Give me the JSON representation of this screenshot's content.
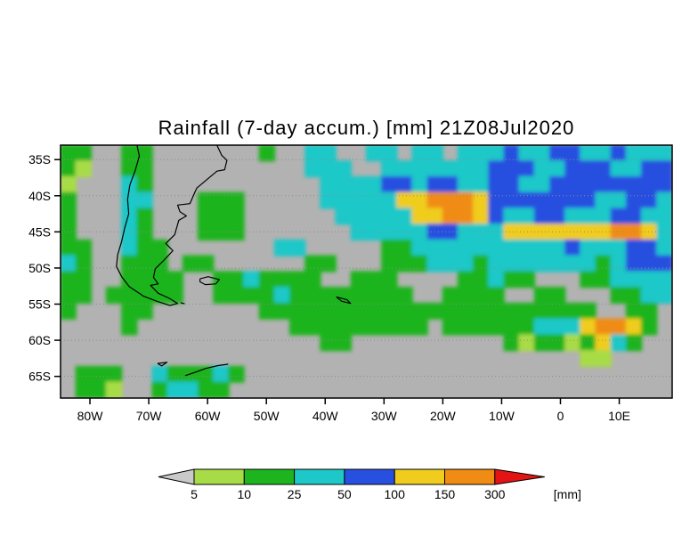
{
  "chart_data": {
    "type": "heatmap",
    "title": "Rainfall (7-day accum.) [mm] 21Z08Jul2020",
    "x_ticks": [
      "80W",
      "70W",
      "60W",
      "50W",
      "40W",
      "30W",
      "20W",
      "10W",
      "0",
      "10E"
    ],
    "y_ticks": [
      "35S",
      "40S",
      "45S",
      "50S",
      "55S",
      "60S",
      "65S"
    ],
    "lon_range_deg_east": [
      -85,
      19
    ],
    "lat_range_deg_south": [
      33,
      68
    ],
    "grid_lines": "dotted horizontal latitude lines",
    "legend_position": "bottom-center",
    "background_color": "#b2b2b2",
    "colorbar": {
      "labels": [
        "5",
        "10",
        "25",
        "50",
        "100",
        "150",
        "300"
      ],
      "unit": "[mm]",
      "colors": {
        "below": "#c9c9c9",
        "segments": [
          "#a8dc46",
          "#1eb41e",
          "#1fc8c8",
          "#2850e0",
          "#f0cc1e",
          "#f08c14"
        ],
        "above": "#e41414"
      },
      "bins_mm": [
        "<5",
        "5-10",
        "10-25",
        "25-50",
        "50-100",
        "100-150",
        "150-300",
        ">300"
      ]
    },
    "grid": {
      "cols": 40,
      "rows": 16,
      "cell_legend": {
        ".": "no rain / <5mm (gray)",
        "1": "5-10",
        "2": "10-25",
        "3": "25-50",
        "4": "50-100",
        "5": "100-150",
        "6": "150-300",
        "7": ">300"
      },
      "cells": [
        [
          "22..22....",
          "...2..33..",
          "33.33.3334",
          "3344334333"
        ],
        [
          "21..22....",
          "......333.",
          ".333333344",
          "4334443344"
        ],
        [
          "1...32....",
          ".......333",
          "3443443344",
          "3344444444"
        ],
        [
          "2...33...2",
          "22.....333",
          "3355666544",
          "4444433443"
        ],
        [
          "2...32...2",
          "22......33",
          "3335566543",
          "3443334433"
        ],
        [
          "2...32...2",
          "22.......3",
          "3333443335",
          "5555556653"
        ],
        [
          "22..322...",
          "....33....",
          ".223333333",
          "3334333443"
        ],
        [
          "32..222.22",
          "......22..",
          ".222333233",
          "3333323444"
        ],
        [
          "22..2222..",
          "2232222..2",
          "22....2232",
          "2...223333"
        ],
        [
          "22.22222..",
          "2222322222",
          "222..2222.",
          ".22...2233"
        ],
        [
          "2...22....",
          "...2222222",
          "2222222222",
          "22222..22."
        ],
        [
          "....2.....",
          ".....22222",
          "2222.22222",
          "233356652."
        ],
        [
          "..........",
          ".......22.",
          ".........2",
          "12212532.."
        ],
        [
          "..........",
          "..........",
          "..........",
          "....11...."
        ],
        [
          ".222..3222",
          "32........",
          "..........",
          ".........."
        ],
        [
          ".221..2332",
          "2.........",
          "..........",
          ".........."
        ]
      ]
    },
    "coastlines": [
      [
        [
          -72,
          33
        ],
        [
          -71.6,
          34.5
        ],
        [
          -72.3,
          36.5
        ],
        [
          -73.2,
          38.5
        ],
        [
          -73.6,
          40.5
        ],
        [
          -73.4,
          42.5
        ],
        [
          -74.1,
          44.5
        ],
        [
          -74.6,
          46.3
        ],
        [
          -75.3,
          48.2
        ],
        [
          -75.5,
          49.8
        ],
        [
          -74.6,
          51.2
        ],
        [
          -73.3,
          52.6
        ],
        [
          -71.4,
          53.6
        ],
        [
          -70.9,
          53.9
        ],
        [
          -68.6,
          54.6
        ],
        [
          -66.4,
          55.2
        ],
        [
          -65.1,
          54.9
        ],
        [
          -66.5,
          54.2
        ],
        [
          -68.4,
          53.5
        ],
        [
          -69.7,
          52.4
        ],
        [
          -68.4,
          52.2
        ],
        [
          -69.2,
          51.3
        ],
        [
          -68.9,
          50.1
        ],
        [
          -67.4,
          48.9
        ],
        [
          -65.9,
          47.6
        ],
        [
          -67.1,
          46.6
        ],
        [
          -65.6,
          45.4
        ],
        [
          -64.9,
          43.4
        ],
        [
          -63.6,
          42.8
        ],
        [
          -64.7,
          42.2
        ],
        [
          -65.1,
          41.3
        ],
        [
          -63,
          41.1
        ],
        [
          -62.1,
          39.4
        ],
        [
          -61.8,
          38.9
        ],
        [
          -58.4,
          36.6
        ],
        [
          -57.1,
          36.4
        ],
        [
          -56.7,
          35.1
        ],
        [
          -57.6,
          34.4
        ],
        [
          -58.4,
          33
        ]
      ],
      [
        [
          -61.3,
          51.5
        ],
        [
          -59.9,
          51.2
        ],
        [
          -58,
          51.6
        ],
        [
          -58.6,
          52.2
        ],
        [
          -60.4,
          52.3
        ],
        [
          -61.3,
          51.9
        ],
        [
          -61.3,
          51.5
        ]
      ],
      [
        [
          -38.1,
          54
        ],
        [
          -36.3,
          54.4
        ],
        [
          -35.7,
          54.9
        ],
        [
          -37.2,
          54.6
        ],
        [
          -38.1,
          54
        ]
      ],
      [
        [
          -64.6,
          54.8
        ],
        [
          -63.9,
          54.95
        ]
      ],
      [
        [
          -63.8,
          64.9
        ],
        [
          -62,
          64.4
        ],
        [
          -60.3,
          63.9
        ],
        [
          -58.2,
          63.5
        ],
        [
          -56.5,
          63.3
        ]
      ],
      [
        [
          -68.5,
          63.2
        ],
        [
          -66.9,
          63.05
        ],
        [
          -67.8,
          63.55
        ],
        [
          -68.5,
          63.2
        ]
      ]
    ]
  }
}
